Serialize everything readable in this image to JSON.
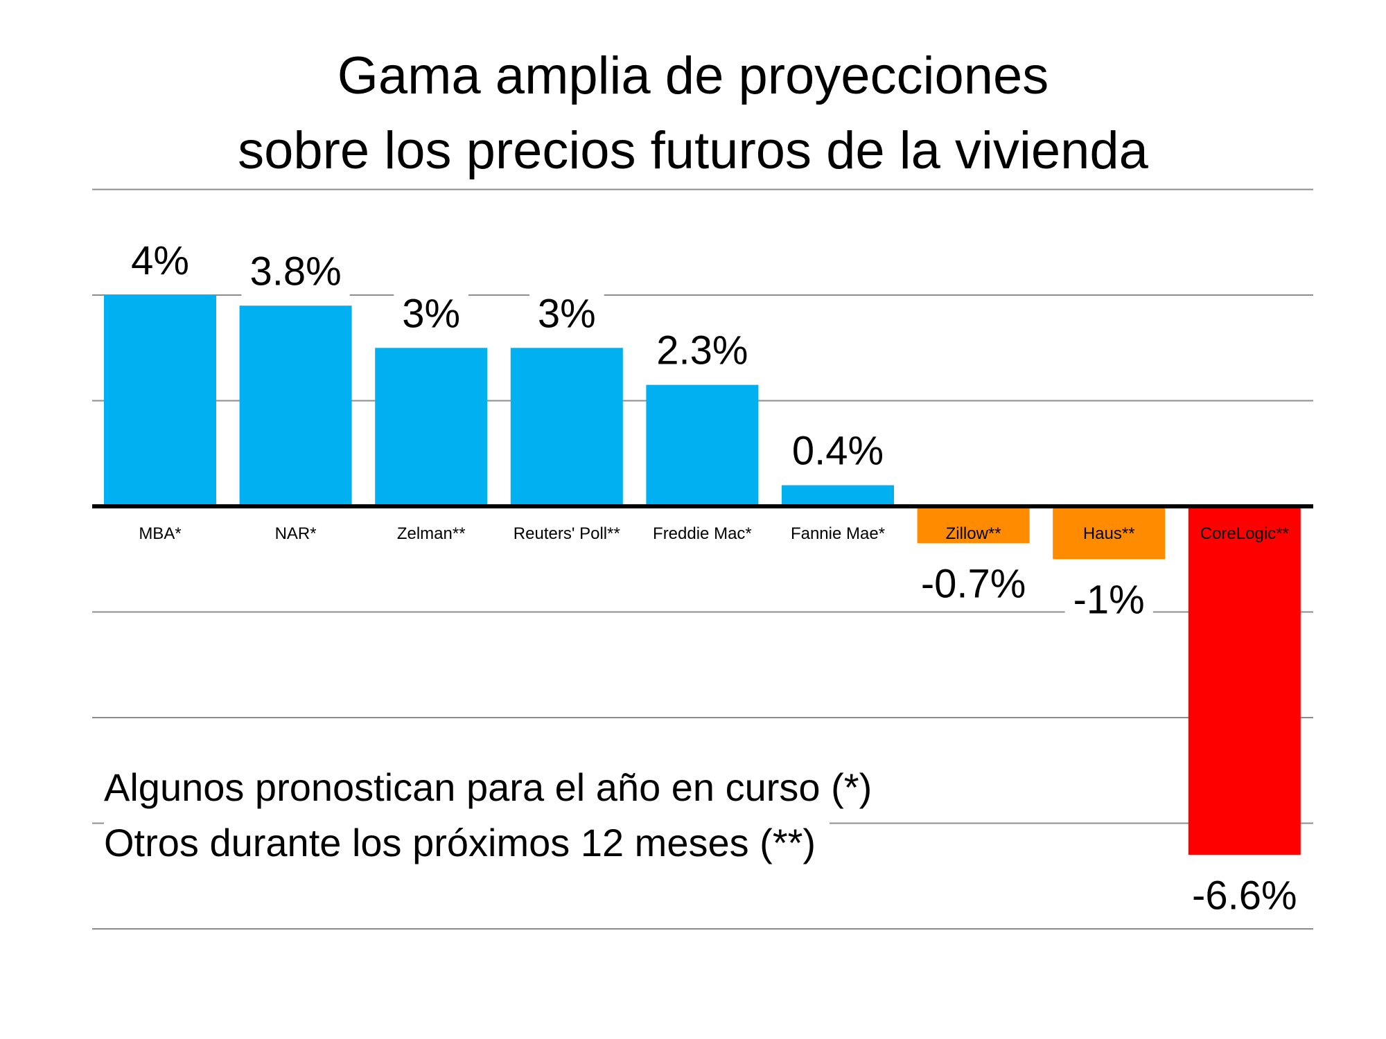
{
  "chart_data": {
    "type": "bar",
    "title": "Gama amplia de proyecciones\nsobre los precios futuros de la vivienda",
    "title_lines": [
      "Gama amplia de proyecciones",
      "sobre los precios futuros de la vivienda"
    ],
    "categories": [
      "MBA*",
      "NAR*",
      "Zelman**",
      "Reuters' Poll**",
      "Freddie Mac*",
      "Fannie Mae*",
      "Zillow**",
      "Haus**",
      "CoreLogic**"
    ],
    "values": [
      4,
      3.8,
      3,
      3,
      2.3,
      0.4,
      -0.7,
      -1,
      -6.6
    ],
    "data_labels": [
      "4%",
      "3.8%",
      "3%",
      "3%",
      "2.3%",
      "0.4%",
      "-0.7%",
      "-1%",
      "-6.6%"
    ],
    "colors": [
      "#00B0F0",
      "#00B0F0",
      "#00B0F0",
      "#00B0F0",
      "#00B0F0",
      "#00B0F0",
      "#FF8C00",
      "#FF8C00",
      "#FF0000"
    ],
    "ylim": [
      -8,
      6
    ],
    "y_gridlines": [
      6,
      4,
      2,
      -2,
      -4,
      -6,
      -8
    ],
    "y_axis_labels_shown": false,
    "grid": true,
    "xlabel": "",
    "ylabel": ""
  },
  "footnotes": [
    "Algunos pronostican para el año en curso (*)",
    "Otros durante los próximos 12 meses (**)"
  ]
}
